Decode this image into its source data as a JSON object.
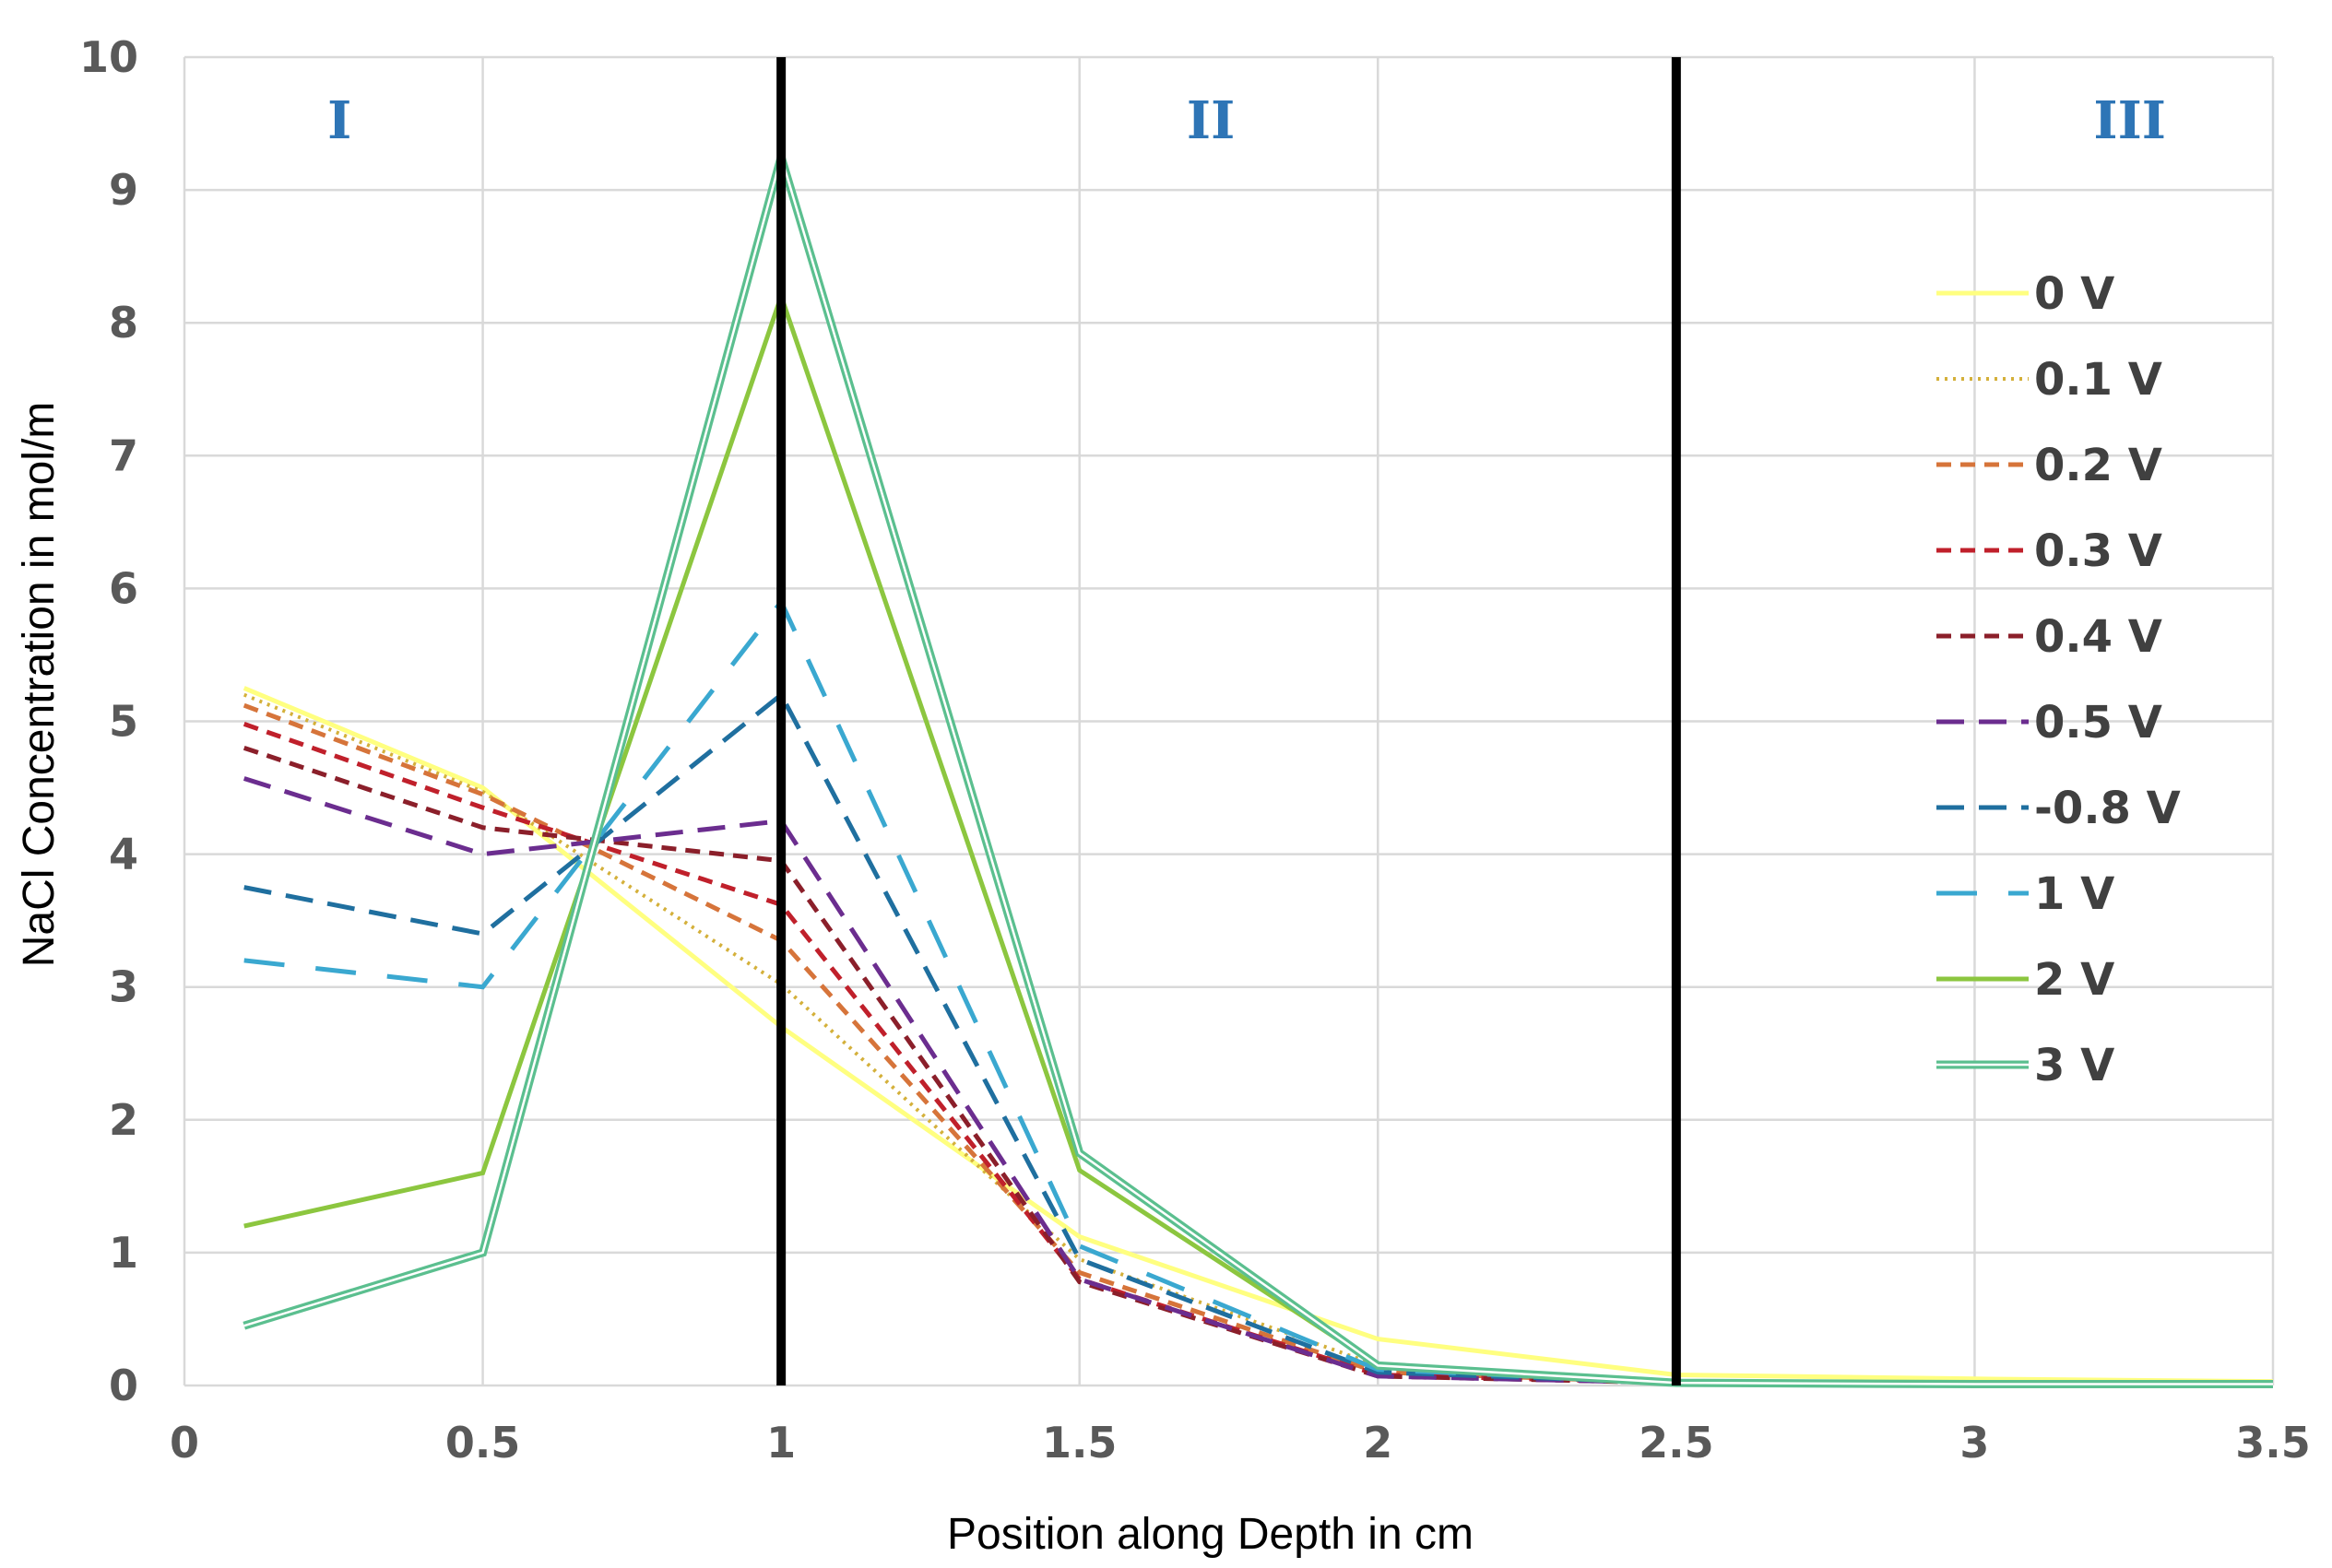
{
  "colors": {
    "region_label": "#2e75b6",
    "boundary": "#000000",
    "grid": "#d9d9d9"
  },
  "chart_data": {
    "type": "line",
    "title": "",
    "xlabel": "Position along Depth in cm",
    "ylabel": "NaCl Concentration in mol/m",
    "xlim": [
      0,
      3.5
    ],
    "ylim": [
      0,
      10
    ],
    "xticks": [
      "0",
      "0.5",
      "1",
      "1.5",
      "2",
      "2.5",
      "3",
      "3.5"
    ],
    "yticks": [
      "0",
      "1",
      "2",
      "3",
      "4",
      "5",
      "6",
      "7",
      "8",
      "9",
      "10"
    ],
    "grid": true,
    "legend_position": "right",
    "boundaries_x": [
      1,
      2.5
    ],
    "regions": [
      {
        "label": "I",
        "x": 0.26
      },
      {
        "label": "II",
        "x": 1.72
      },
      {
        "label": "III",
        "x": 3.26
      }
    ],
    "series": [
      {
        "name": "0 V",
        "color": "#ffff80",
        "dash": "solid",
        "x": [
          0.1,
          0.5,
          1,
          1.5,
          2,
          2.5,
          3,
          3.5
        ],
        "y": [
          5.25,
          4.5,
          2.7,
          1.12,
          0.35,
          0.08,
          0.05,
          0.03
        ]
      },
      {
        "name": "0.1 V",
        "color": "#d4b03a",
        "dash": "dot",
        "x": [
          0.1,
          0.5,
          1,
          1.5,
          2,
          2.5,
          3,
          3.5
        ],
        "y": [
          5.2,
          4.47,
          3.02,
          0.95,
          0.15,
          0.03,
          0.02,
          0.02
        ]
      },
      {
        "name": "0.2 V",
        "color": "#d6743a",
        "dash": "medium",
        "x": [
          0.1,
          0.5,
          1,
          1.5,
          2,
          2.5,
          3,
          3.5
        ],
        "y": [
          5.12,
          4.45,
          3.35,
          0.85,
          0.1,
          0.02,
          0.01,
          0.01
        ]
      },
      {
        "name": "0.3 V",
        "color": "#c0202b",
        "dash": "medium",
        "x": [
          0.1,
          0.5,
          1,
          1.5,
          2,
          2.5,
          3,
          3.5
        ],
        "y": [
          4.98,
          4.35,
          3.62,
          0.8,
          0.08,
          0.02,
          0.01,
          0.01
        ]
      },
      {
        "name": "0.4 V",
        "color": "#8b1f2a",
        "dash": "medium",
        "x": [
          0.1,
          0.5,
          1,
          1.5,
          2,
          2.5,
          3,
          3.5
        ],
        "y": [
          4.8,
          4.2,
          3.95,
          0.78,
          0.07,
          0.02,
          0.01,
          0.01
        ]
      },
      {
        "name": "0.5 V",
        "color": "#6b2d8f",
        "dash": "long",
        "x": [
          0.1,
          0.5,
          1,
          1.5,
          2,
          2.5,
          3,
          3.5
        ],
        "y": [
          4.57,
          4.0,
          4.25,
          0.8,
          0.07,
          0.02,
          0.01,
          0.01
        ]
      },
      {
        "name": "-0.8 V",
        "color": "#1f6f9f",
        "dash": "long",
        "x": [
          0.1,
          0.5,
          1,
          1.5,
          2,
          2.5,
          3,
          3.5
        ],
        "y": [
          3.75,
          3.4,
          5.2,
          0.95,
          0.1,
          0.02,
          0.01,
          0.01
        ]
      },
      {
        "name": "1 V",
        "color": "#3aa8d0",
        "dash": "xlong",
        "x": [
          0.1,
          0.5,
          1,
          1.5,
          2,
          2.5,
          3,
          3.5
        ],
        "y": [
          3.2,
          3.0,
          5.9,
          1.05,
          0.12,
          0.02,
          0.01,
          0.01
        ]
      },
      {
        "name": "2 V",
        "color": "#8cc63f",
        "dash": "solid",
        "x": [
          0.1,
          0.5,
          1,
          1.5,
          2,
          2.5,
          3,
          3.5
        ],
        "y": [
          1.2,
          1.6,
          8.2,
          1.62,
          0.15,
          0.02,
          0.01,
          0.01
        ]
      },
      {
        "name": "3 V",
        "color": "#5bbf8f",
        "dash": "double",
        "x": [
          0.1,
          0.5,
          1,
          1.5,
          2,
          2.5,
          3,
          3.5
        ],
        "y": [
          0.45,
          1.0,
          9.25,
          1.75,
          0.15,
          0.02,
          0.01,
          0.01
        ]
      }
    ]
  }
}
